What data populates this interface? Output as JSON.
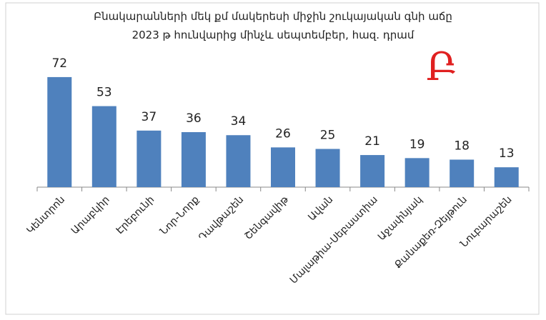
{
  "chart_data": {
    "type": "bar",
    "title": "Բնակարանների մեկ քմ մակերեսի միջին շուկայական գնի աճը",
    "subtitle": "2023 թ հունվարից մինչև սեպտեմբեր, հազ. դրամ",
    "logo": "Բ",
    "categories": [
      "Կենտրոն",
      "Արաբկիր",
      "Էրեբունի",
      "Նոր-Նորք",
      "Դավթաշեն",
      "Շենգավիթ",
      "Ավան",
      "Մալաթիա-Սեբաստիա",
      "Աջափնյակ",
      "Քանաքեռ-Զեյթուն",
      "Նուբարաշեն"
    ],
    "values": [
      72,
      53,
      37,
      36,
      34,
      26,
      25,
      21,
      19,
      18,
      13
    ],
    "color": "#4f81bd"
  }
}
